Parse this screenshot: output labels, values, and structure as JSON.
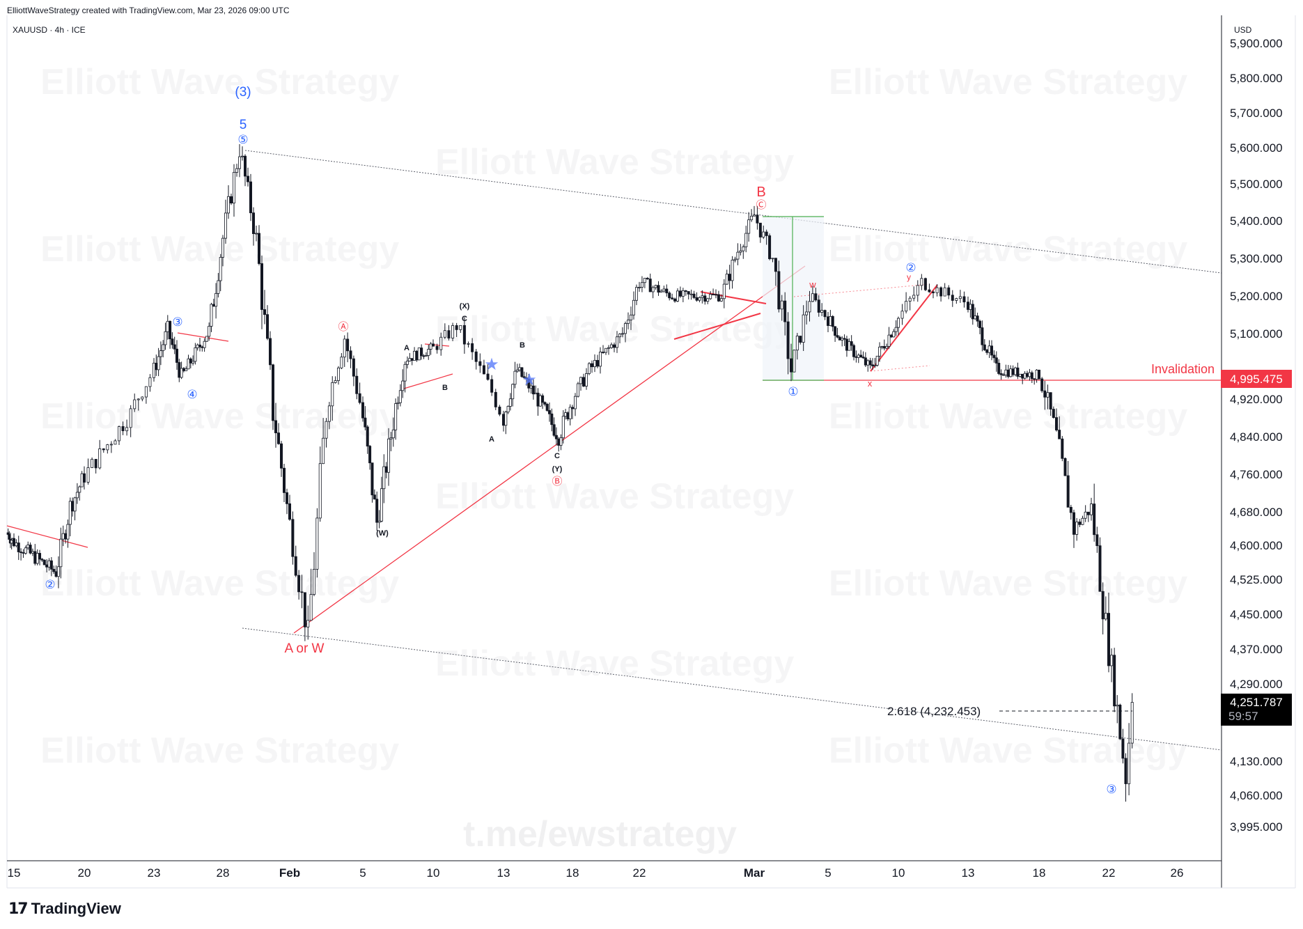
{
  "header": {
    "attribution": "ElliottWaveStrategy created with TradingView.com, Mar 23, 2026 09:00 UTC",
    "symbol": "XAUUSD · 4h · ICE",
    "axis_unit": "USD",
    "brand": "TradingView"
  },
  "watermark": {
    "text": "Elliott Wave Strategy",
    "link": "t.me/ewstrategy"
  },
  "colors": {
    "up": "#ffffff",
    "down": "#131722",
    "wave_blue": "#2962ff",
    "wave_red": "#f23645",
    "range_green": "#4caf50",
    "price_badge": "#000000"
  },
  "chart_data": {
    "type": "candlestick",
    "timeframe": "4h",
    "y_axis": {
      "ticks": [
        "5,900.000",
        "5,800.000",
        "5,700.000",
        "5,600.000",
        "5,500.000",
        "5,400.000",
        "5,300.000",
        "5,200.000",
        "5,100.000",
        "4,920.000",
        "4,840.000",
        "4,760.000",
        "4,680.000",
        "4,600.000",
        "4,525.000",
        "4,450.000",
        "4,370.000",
        "4,290.000",
        "4,130.000",
        "4,060.000",
        "3,995.000"
      ]
    },
    "x_axis": {
      "ticks": [
        "15",
        "20",
        "23",
        "28",
        "Feb",
        "5",
        "10",
        "13",
        "18",
        "22",
        "Mar",
        "5",
        "10",
        "13",
        "18",
        "22",
        "26"
      ]
    },
    "price_path": [
      {
        "t": "Jan 14",
        "p": 4630
      },
      {
        "t": "Jan 18",
        "p": 4540
      },
      {
        "t": "Jan 19",
        "p": 4690
      },
      {
        "t": "Jan 22",
        "p": 4890
      },
      {
        "t": "Jan 24",
        "p": 5110
      },
      {
        "t": "Jan 25",
        "p": 4980
      },
      {
        "t": "Jan 27",
        "p": 5110
      },
      {
        "t": "Jan 29",
        "p": 5598
      },
      {
        "t": "Jan 30",
        "p": 5350
      },
      {
        "t": "Jan 31",
        "p": 4900
      },
      {
        "t": "Feb 2",
        "p": 4402
      },
      {
        "t": "Feb 3",
        "p": 4900
      },
      {
        "t": "Feb 4",
        "p": 5090
      },
      {
        "t": "Feb 5",
        "p": 4880
      },
      {
        "t": "Feb 6",
        "p": 4655
      },
      {
        "t": "Feb 8",
        "p": 5030
      },
      {
        "t": "Feb 10",
        "p": 5060
      },
      {
        "t": "Feb 11",
        "p": 5120
      },
      {
        "t": "Feb 13",
        "p": 4880
      },
      {
        "t": "Feb 14",
        "p": 5000
      },
      {
        "t": "Feb 17",
        "p": 4840
      },
      {
        "t": "Feb 19",
        "p": 5000
      },
      {
        "t": "Feb 21",
        "p": 5100
      },
      {
        "t": "Feb 22",
        "p": 5240
      },
      {
        "t": "Feb 24",
        "p": 5200
      },
      {
        "t": "Feb 27",
        "p": 5200
      },
      {
        "t": "Feb 28",
        "p": 5320
      },
      {
        "t": "Mar 1",
        "p": 5415
      },
      {
        "t": "Mar 2",
        "p": 5300
      },
      {
        "t": "Mar 3",
        "p": 5000
      },
      {
        "t": "Mar 4",
        "p": 5200
      },
      {
        "t": "Mar 6",
        "p": 5080
      },
      {
        "t": "Mar 8",
        "p": 5005
      },
      {
        "t": "Mar 10",
        "p": 5140
      },
      {
        "t": "Mar 11",
        "p": 5235
      },
      {
        "t": "Mar 13",
        "p": 5180
      },
      {
        "t": "Mar 15",
        "p": 5000
      },
      {
        "t": "Mar 18",
        "p": 4985
      },
      {
        "t": "Mar 19",
        "p": 4840
      },
      {
        "t": "Mar 20",
        "p": 4640
      },
      {
        "t": "Mar 21",
        "p": 4690
      },
      {
        "t": "Mar 22",
        "p": 4370
      },
      {
        "t": "Mar 23",
        "p": 4100
      },
      {
        "t": "Mar 23 09:00",
        "p": 4251.787
      }
    ],
    "levels": [
      {
        "name": "Invalidation",
        "value": "4,995.475"
      },
      {
        "name": "fib",
        "label": "2.618 (4,232.453)",
        "value": 4232.453
      }
    ],
    "current_price": "4,251.787",
    "countdown": "59:57",
    "wave_labels": {
      "paren3": "(3)",
      "five": "5",
      "c5": "⑤",
      "c3": "③",
      "c4": "④",
      "c2": "②",
      "c1": "①",
      "aw": "A or W",
      "B": "B",
      "cC": "Ⓒ",
      "cA": "Ⓐ",
      "cB": "Ⓑ",
      "X": "(X)",
      "C": "C",
      "A": "A",
      "Bs": "B",
      "W": "(W)",
      "Y": "(Y)",
      "w": "w",
      "x": "x",
      "y": "y"
    }
  }
}
